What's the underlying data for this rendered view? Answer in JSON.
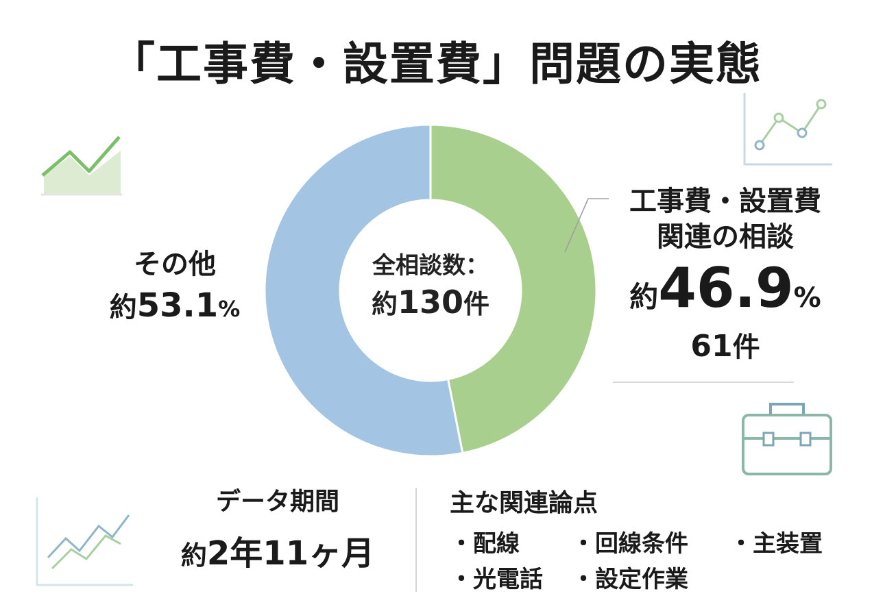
{
  "title": "「工事費・設置費」問題の実態",
  "center": {
    "line1": "全相談数：",
    "prefix": "約",
    "total": "130",
    "unit": "件"
  },
  "labels": {
    "other": {
      "name": "その他",
      "prefix": "約",
      "pct": "53.1",
      "unit": "%"
    },
    "main": {
      "name_line1": "工事費・設置費",
      "name_line2": "関連の相談",
      "prefix": "約",
      "pct": "46.9",
      "unit": "%",
      "count": "61",
      "count_unit": "件"
    }
  },
  "period": {
    "label": "データ期間",
    "prefix": "約",
    "value": "2年11ヶ月"
  },
  "topics": {
    "label": "主な関連論点",
    "items": [
      "・配線",
      "・回線条件",
      "・主装置",
      "・光電話",
      "・設定作業"
    ]
  },
  "chart_data": {
    "type": "pie",
    "donut": true,
    "slices": [
      {
        "label": "工事費・設置費関連の相談",
        "value": 46.9,
        "color": "#a9cf8e"
      },
      {
        "label": "その他",
        "value": 53.1,
        "color": "#a3c4e2"
      }
    ],
    "total": 130
  },
  "icons": [
    "area-chart-icon",
    "line-chart-icon",
    "briefcase-icon",
    "trend-lines-icon"
  ],
  "colors": {
    "green": "#a9cf8e",
    "blue": "#a3c4e2",
    "icon_green": "#7bbf6a",
    "icon_teal": "#7aa6b8"
  }
}
